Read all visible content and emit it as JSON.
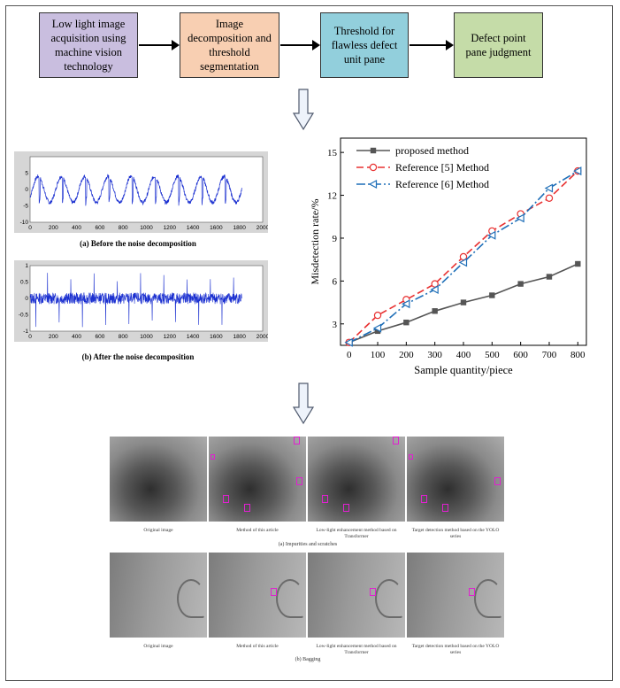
{
  "flow": {
    "steps": [
      "Low light image acquisition using machine vision technology",
      "Image decomposition and threshold segmentation",
      "Threshold for flawless defect unit pane",
      "Defect point pane judgment"
    ],
    "colors": [
      "#c9bedf",
      "#f8cfb2",
      "#92cfdc",
      "#c5dca8"
    ]
  },
  "waves": {
    "before": {
      "caption": "(a) Before the noise decomposition",
      "y_ticks": [
        "5",
        "0",
        "-5",
        "-10"
      ],
      "x_ticks": [
        "0",
        "200",
        "400",
        "600",
        "800",
        "1000",
        "1200",
        "1400",
        "1600",
        "1800",
        "2000"
      ]
    },
    "after": {
      "caption": "(b) After the noise decomposition",
      "y_ticks": [
        "1",
        "0.5",
        "0",
        "-0.5",
        "-1"
      ],
      "x_ticks": [
        "0",
        "200",
        "400",
        "600",
        "800",
        "1000",
        "1200",
        "1400",
        "1600",
        "1800",
        "2000"
      ]
    }
  },
  "chart_data": {
    "type": "line",
    "xlabel": "Sample quantity/piece",
    "ylabel": "Misdetection rate/%",
    "xlim": [
      -30,
      830
    ],
    "ylim": [
      1.5,
      16
    ],
    "x_ticks": [
      0,
      100,
      200,
      300,
      400,
      500,
      600,
      700,
      800
    ],
    "y_ticks": [
      3,
      6,
      9,
      12,
      15
    ],
    "legend_position": "top-left",
    "series": [
      {
        "name": "proposed method",
        "color": "#555555",
        "marker": "square",
        "x": [
          0,
          100,
          200,
          300,
          400,
          500,
          600,
          700,
          800
        ],
        "values": [
          1.7,
          2.5,
          3.1,
          3.9,
          4.5,
          5.0,
          5.8,
          6.3,
          7.2
        ]
      },
      {
        "name": "Reference [5] Method",
        "color": "#e83030",
        "marker": "circle",
        "x": [
          0,
          100,
          200,
          300,
          400,
          500,
          600,
          700,
          800
        ],
        "values": [
          1.7,
          3.6,
          4.7,
          5.8,
          7.7,
          9.5,
          10.7,
          11.8,
          13.7
        ]
      },
      {
        "name": "Reference [6] Method",
        "color": "#1f6fb8",
        "marker": "triangle-left",
        "x": [
          0,
          100,
          200,
          300,
          400,
          500,
          600,
          700,
          800
        ],
        "values": [
          1.7,
          2.7,
          4.4,
          5.4,
          7.3,
          9.2,
          10.4,
          12.5,
          13.7
        ]
      }
    ]
  },
  "results": {
    "row1": {
      "captions": [
        "Original image",
        "Method of this article",
        "Low-light enhancement method based on Transformer",
        "Target detection method based on the YOLO series"
      ],
      "subcaption": "(a) Impurities and scratches"
    },
    "row2": {
      "captions": [
        "Original image",
        "Method of this article",
        "Low-light enhancement method based on Transformer",
        "Target detection method based on the YOLO series"
      ],
      "subcaption": "(b) Bagging"
    }
  }
}
